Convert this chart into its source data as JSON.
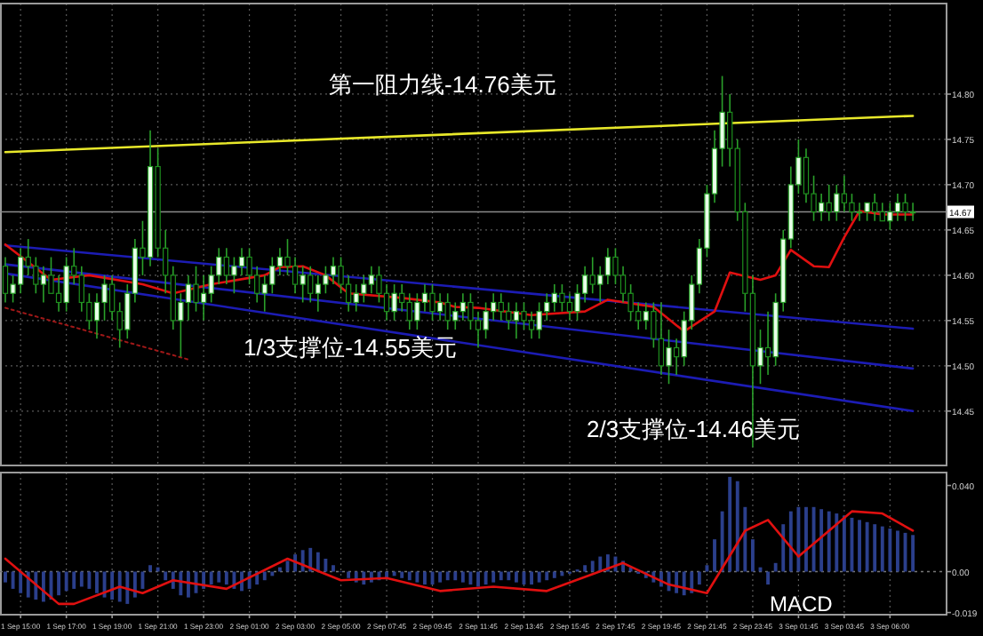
{
  "chart_data": [
    {
      "type": "candlestick",
      "tick_labels": "y",
      "grid": true,
      "categories": [
        null,
        null,
        null,
        null,
        null,
        null,
        null,
        null,
        null,
        null,
        null,
        null,
        null,
        null,
        null,
        null,
        null,
        null,
        null,
        null,
        null,
        null,
        null,
        null,
        null,
        null,
        null,
        null,
        null,
        null,
        null,
        null,
        null,
        null,
        null,
        null,
        null,
        null,
        null,
        null,
        null,
        null,
        null,
        null,
        null,
        null,
        null,
        null,
        null,
        null,
        null,
        null,
        null,
        null,
        null,
        null,
        null,
        null,
        null,
        null,
        null,
        null,
        null,
        null,
        null,
        null,
        null,
        null,
        null,
        null,
        null,
        null,
        null,
        null,
        null,
        null,
        null,
        null,
        null,
        null,
        null,
        null,
        null,
        null,
        null,
        null,
        null,
        null,
        null,
        null,
        null,
        null,
        null,
        null,
        null,
        null,
        null,
        null,
        null,
        null,
        null,
        null,
        null,
        null,
        null,
        null,
        null,
        null,
        null,
        null,
        null,
        null,
        null,
        null,
        null,
        null,
        null,
        null,
        null,
        null
      ],
      "ohlc": [
        [
          14.61,
          14.62,
          14.57,
          14.58
        ],
        [
          14.58,
          14.6,
          14.57,
          14.59
        ],
        [
          14.59,
          14.63,
          14.58,
          14.62
        ],
        [
          14.62,
          14.64,
          14.6,
          14.61
        ],
        [
          14.61,
          14.62,
          14.58,
          14.59
        ],
        [
          14.59,
          14.61,
          14.57,
          14.6
        ],
        [
          14.6,
          14.62,
          14.58,
          14.58
        ],
        [
          14.58,
          14.6,
          14.56,
          14.57
        ],
        [
          14.57,
          14.62,
          14.56,
          14.61
        ],
        [
          14.61,
          14.63,
          14.59,
          14.6
        ],
        [
          14.6,
          14.61,
          14.56,
          14.57
        ],
        [
          14.57,
          14.58,
          14.54,
          14.55
        ],
        [
          14.55,
          14.58,
          14.53,
          14.57
        ],
        [
          14.57,
          14.6,
          14.55,
          14.59
        ],
        [
          14.59,
          14.6,
          14.55,
          14.56
        ],
        [
          14.56,
          14.57,
          14.52,
          14.54
        ],
        [
          14.54,
          14.59,
          14.53,
          14.58
        ],
        [
          14.58,
          14.64,
          14.57,
          14.63
        ],
        [
          14.63,
          14.66,
          14.6,
          14.62
        ],
        [
          14.62,
          14.76,
          14.61,
          14.72
        ],
        [
          14.72,
          14.74,
          14.62,
          14.63
        ],
        [
          14.63,
          14.65,
          14.58,
          14.6
        ],
        [
          14.6,
          14.61,
          14.54,
          14.55
        ],
        [
          14.55,
          14.58,
          14.51,
          14.57
        ],
        [
          14.57,
          14.6,
          14.55,
          14.59
        ],
        [
          14.59,
          14.61,
          14.56,
          14.57
        ],
        [
          14.57,
          14.6,
          14.55,
          14.58
        ],
        [
          14.58,
          14.61,
          14.57,
          14.6
        ],
        [
          14.6,
          14.63,
          14.59,
          14.62
        ],
        [
          14.62,
          14.63,
          14.59,
          14.6
        ],
        [
          14.6,
          14.62,
          14.58,
          14.61
        ],
        [
          14.61,
          14.63,
          14.6,
          14.62
        ],
        [
          14.62,
          14.63,
          14.59,
          14.6
        ],
        [
          14.6,
          14.61,
          14.57,
          14.58
        ],
        [
          14.58,
          14.6,
          14.56,
          14.59
        ],
        [
          14.59,
          14.62,
          14.58,
          14.61
        ],
        [
          14.61,
          14.63,
          14.6,
          14.62
        ],
        [
          14.62,
          14.64,
          14.6,
          14.61
        ],
        [
          14.61,
          14.62,
          14.58,
          14.59
        ],
        [
          14.59,
          14.61,
          14.57,
          14.6
        ],
        [
          14.6,
          14.61,
          14.57,
          14.58
        ],
        [
          14.58,
          14.6,
          14.56,
          14.59
        ],
        [
          14.59,
          14.61,
          14.58,
          14.6
        ],
        [
          14.6,
          14.62,
          14.59,
          14.61
        ],
        [
          14.61,
          14.62,
          14.58,
          14.59
        ],
        [
          14.59,
          14.6,
          14.56,
          14.57
        ],
        [
          14.57,
          14.59,
          14.56,
          14.58
        ],
        [
          14.58,
          14.6,
          14.57,
          14.59
        ],
        [
          14.59,
          14.61,
          14.58,
          14.6
        ],
        [
          14.6,
          14.61,
          14.57,
          14.58
        ],
        [
          14.58,
          14.59,
          14.55,
          14.56
        ],
        [
          14.56,
          14.59,
          14.55,
          14.58
        ],
        [
          14.58,
          14.59,
          14.56,
          14.57
        ],
        [
          14.57,
          14.58,
          14.54,
          14.55
        ],
        [
          14.55,
          14.58,
          14.54,
          14.57
        ],
        [
          14.57,
          14.59,
          14.56,
          14.58
        ],
        [
          14.58,
          14.59,
          14.55,
          14.56
        ],
        [
          14.56,
          14.58,
          14.55,
          14.57
        ],
        [
          14.57,
          14.58,
          14.54,
          14.55
        ],
        [
          14.55,
          14.57,
          14.54,
          14.56
        ],
        [
          14.56,
          14.58,
          14.55,
          14.57
        ],
        [
          14.57,
          14.58,
          14.54,
          14.55
        ],
        [
          14.55,
          14.56,
          14.52,
          14.54
        ],
        [
          14.54,
          14.57,
          14.53,
          14.56
        ],
        [
          14.56,
          14.58,
          14.55,
          14.57
        ],
        [
          14.57,
          14.58,
          14.55,
          14.56
        ],
        [
          14.56,
          14.57,
          14.54,
          14.55
        ],
        [
          14.55,
          14.57,
          14.53,
          14.56
        ],
        [
          14.56,
          14.57,
          14.54,
          14.55
        ],
        [
          14.55,
          14.56,
          14.53,
          14.54
        ],
        [
          14.54,
          14.57,
          14.53,
          14.56
        ],
        [
          14.56,
          14.58,
          14.55,
          14.57
        ],
        [
          14.57,
          14.59,
          14.56,
          14.58
        ],
        [
          14.58,
          14.59,
          14.56,
          14.57
        ],
        [
          14.57,
          14.58,
          14.55,
          14.56
        ],
        [
          14.56,
          14.59,
          14.55,
          14.58
        ],
        [
          14.58,
          14.61,
          14.57,
          14.6
        ],
        [
          14.6,
          14.62,
          14.58,
          14.59
        ],
        [
          14.59,
          14.61,
          14.57,
          14.6
        ],
        [
          14.6,
          14.63,
          14.59,
          14.62
        ],
        [
          14.62,
          14.63,
          14.59,
          14.6
        ],
        [
          14.6,
          14.61,
          14.57,
          14.58
        ],
        [
          14.58,
          14.59,
          14.55,
          14.56
        ],
        [
          14.56,
          14.57,
          14.54,
          14.55
        ],
        [
          14.55,
          14.57,
          14.54,
          14.56
        ],
        [
          14.56,
          14.57,
          14.52,
          14.53
        ],
        [
          14.53,
          14.57,
          14.49,
          14.5
        ],
        [
          14.5,
          14.54,
          14.48,
          14.52
        ],
        [
          14.52,
          14.53,
          14.49,
          14.51
        ],
        [
          14.51,
          14.56,
          14.5,
          14.55
        ],
        [
          14.55,
          14.6,
          14.54,
          14.59
        ],
        [
          14.59,
          14.64,
          14.58,
          14.63
        ],
        [
          14.63,
          14.7,
          14.62,
          14.69
        ],
        [
          14.69,
          14.76,
          14.68,
          14.74
        ],
        [
          14.74,
          14.82,
          14.72,
          14.78
        ],
        [
          14.78,
          14.8,
          14.72,
          14.74
        ],
        [
          14.74,
          14.75,
          14.66,
          14.67
        ],
        [
          14.67,
          14.68,
          14.56,
          14.58
        ],
        [
          14.58,
          14.6,
          14.41,
          14.5
        ],
        [
          14.5,
          14.54,
          14.48,
          14.52
        ],
        [
          14.52,
          14.56,
          14.49,
          14.51
        ],
        [
          14.51,
          14.58,
          14.5,
          14.57
        ],
        [
          14.57,
          14.65,
          14.56,
          14.64
        ],
        [
          14.64,
          14.72,
          14.63,
          14.7
        ],
        [
          14.7,
          14.75,
          14.69,
          14.73
        ],
        [
          14.73,
          14.74,
          14.68,
          14.69
        ],
        [
          14.69,
          14.71,
          14.66,
          14.67
        ],
        [
          14.67,
          14.69,
          14.66,
          14.68
        ],
        [
          14.68,
          14.7,
          14.66,
          14.67
        ],
        [
          14.67,
          14.7,
          14.66,
          14.69
        ],
        [
          14.69,
          14.71,
          14.67,
          14.68
        ],
        [
          14.68,
          14.69,
          14.66,
          14.67
        ],
        [
          14.67,
          14.68,
          14.66,
          14.67
        ],
        [
          14.67,
          14.68,
          14.66,
          14.68
        ],
        [
          14.68,
          14.69,
          14.66,
          14.67
        ],
        [
          14.67,
          14.68,
          14.66,
          14.66
        ],
        [
          14.66,
          14.68,
          14.65,
          14.67
        ],
        [
          14.67,
          14.69,
          14.66,
          14.68
        ],
        [
          14.68,
          14.69,
          14.66,
          14.67
        ],
        [
          14.67,
          14.68,
          14.66,
          14.67
        ]
      ],
      "series": [
        {
          "type": "line",
          "color": "#e8e82a",
          "values": [
            14.736,
            null,
            null,
            null,
            null,
            null,
            null,
            null,
            null,
            null,
            null,
            null,
            null,
            null,
            null,
            null,
            null,
            null,
            null,
            null,
            null,
            null,
            null,
            null,
            null,
            null,
            null,
            null,
            null,
            null,
            null,
            null,
            null,
            null,
            null,
            null,
            null,
            null,
            null,
            null,
            null,
            null,
            null,
            null,
            null,
            null,
            null,
            null,
            null,
            null,
            null,
            null,
            null,
            null,
            null,
            null,
            null,
            null,
            null,
            null,
            null,
            null,
            null,
            null,
            null,
            null,
            null,
            null,
            null,
            null,
            null,
            null,
            null,
            null,
            null,
            null,
            null,
            null,
            null,
            null,
            null,
            null,
            null,
            null,
            null,
            null,
            null,
            null,
            null,
            null,
            null,
            null,
            null,
            null,
            null,
            null,
            null,
            null,
            null,
            null,
            null,
            null,
            null,
            null,
            null,
            null,
            null,
            null,
            null,
            null,
            null,
            null,
            null,
            null,
            null,
            null,
            null,
            null,
            null,
            14.776
          ]
        },
        {
          "type": "line",
          "color": "#1c1cb4",
          "values": [
            14.633,
            null,
            null,
            null,
            null,
            null,
            null,
            null,
            null,
            null,
            null,
            null,
            null,
            null,
            null,
            null,
            null,
            null,
            null,
            null,
            null,
            null,
            null,
            null,
            null,
            null,
            null,
            null,
            null,
            null,
            null,
            null,
            null,
            null,
            null,
            null,
            null,
            null,
            null,
            null,
            null,
            null,
            null,
            null,
            null,
            null,
            null,
            null,
            null,
            null,
            null,
            null,
            null,
            null,
            null,
            null,
            null,
            null,
            null,
            null,
            null,
            null,
            null,
            null,
            null,
            null,
            null,
            null,
            null,
            null,
            null,
            null,
            null,
            null,
            null,
            null,
            null,
            null,
            null,
            null,
            null,
            null,
            null,
            null,
            null,
            null,
            null,
            null,
            null,
            null,
            null,
            null,
            null,
            null,
            null,
            null,
            null,
            null,
            null,
            null,
            null,
            null,
            null,
            null,
            null,
            null,
            null,
            null,
            null,
            null,
            null,
            null,
            null,
            null,
            null,
            null,
            null,
            null,
            null,
            14.541
          ]
        },
        {
          "type": "line",
          "color": "#1c1cb4",
          "values": [
            14.612,
            null,
            null,
            null,
            null,
            null,
            null,
            null,
            null,
            null,
            null,
            null,
            null,
            null,
            null,
            null,
            null,
            null,
            null,
            null,
            null,
            null,
            null,
            null,
            null,
            null,
            null,
            null,
            null,
            null,
            null,
            null,
            null,
            null,
            null,
            null,
            null,
            null,
            null,
            null,
            null,
            null,
            null,
            null,
            null,
            null,
            null,
            null,
            null,
            null,
            null,
            null,
            null,
            null,
            null,
            null,
            null,
            null,
            null,
            null,
            null,
            null,
            null,
            null,
            null,
            null,
            null,
            null,
            null,
            null,
            null,
            null,
            null,
            null,
            null,
            null,
            null,
            null,
            null,
            null,
            null,
            null,
            null,
            null,
            null,
            null,
            null,
            null,
            null,
            null,
            null,
            null,
            null,
            null,
            null,
            null,
            null,
            null,
            null,
            null,
            null,
            null,
            null,
            null,
            null,
            null,
            null,
            null,
            null,
            null,
            null,
            null,
            null,
            null,
            null,
            null,
            null,
            null,
            null,
            14.497
          ]
        },
        {
          "type": "line",
          "color": "#1c1cb4",
          "values": [
            14.602,
            null,
            null,
            null,
            null,
            null,
            null,
            null,
            null,
            null,
            null,
            null,
            null,
            null,
            null,
            null,
            null,
            null,
            null,
            null,
            null,
            null,
            null,
            null,
            null,
            null,
            null,
            null,
            null,
            null,
            null,
            null,
            null,
            null,
            null,
            null,
            null,
            null,
            null,
            null,
            null,
            null,
            null,
            null,
            null,
            null,
            null,
            null,
            null,
            null,
            null,
            null,
            null,
            null,
            null,
            null,
            null,
            null,
            null,
            null,
            null,
            null,
            null,
            null,
            null,
            null,
            null,
            null,
            null,
            null,
            null,
            null,
            null,
            null,
            null,
            null,
            null,
            null,
            null,
            null,
            null,
            null,
            null,
            null,
            null,
            null,
            null,
            null,
            null,
            null,
            null,
            null,
            null,
            null,
            null,
            null,
            null,
            null,
            null,
            null,
            null,
            null,
            null,
            null,
            null,
            null,
            null,
            null,
            null,
            null,
            null,
            null,
            null,
            null,
            null,
            null,
            null,
            null,
            null,
            14.45
          ]
        },
        {
          "type": "line",
          "color": "#a01818",
          "line_style": "dotted",
          "values": [
            14.564,
            null,
            null,
            null,
            null,
            null,
            null,
            null,
            null,
            null,
            null,
            null,
            null,
            null,
            null,
            null,
            null,
            null,
            null,
            null,
            null,
            null,
            null,
            null,
            14.507,
            null,
            null,
            null,
            null,
            null,
            null,
            null,
            null,
            null,
            null,
            null,
            null,
            null,
            null,
            null,
            null,
            null,
            null,
            null,
            null,
            null,
            null,
            null,
            null,
            null,
            null,
            null,
            null,
            null,
            null,
            null,
            null,
            null,
            null,
            null,
            null,
            null,
            null,
            null,
            null,
            null,
            null,
            null,
            null,
            null,
            null,
            null,
            null,
            null,
            null,
            null,
            null,
            null,
            null,
            null,
            null,
            null,
            null,
            null,
            null,
            null,
            null,
            null,
            null,
            null,
            null,
            null,
            null,
            null,
            null,
            null,
            null,
            null,
            null,
            null,
            null,
            null,
            null,
            null,
            null,
            null,
            null,
            null,
            null,
            null,
            null,
            null,
            null,
            null,
            null,
            null,
            null,
            null,
            null,
            null
          ]
        },
        {
          "type": "line",
          "color": "#e01010",
          "values": [
            14.634,
            null,
            null,
            null,
            null,
            null,
            14.595,
            null,
            null,
            null,
            null,
            14.6,
            null,
            null,
            null,
            null,
            null,
            null,
            14.59,
            null,
            null,
            null,
            14.58,
            null,
            null,
            null,
            null,
            14.59,
            null,
            null,
            null,
            null,
            null,
            null,
            14.6,
            null,
            14.609,
            null,
            null,
            14.61,
            null,
            null,
            14.6,
            null,
            null,
            14.58,
            null,
            null,
            null,
            null,
            null,
            null,
            14.575,
            null,
            null,
            null,
            null,
            14.57,
            null,
            14.565,
            null,
            null,
            14.564,
            null,
            null,
            null,
            null,
            null,
            null,
            14.556,
            null,
            null,
            null,
            null,
            null,
            null,
            14.56,
            null,
            null,
            14.573,
            null,
            null,
            null,
            null,
            null,
            14.565,
            null,
            null,
            null,
            14.538,
            null,
            null,
            null,
            14.56,
            null,
            14.603,
            null,
            null,
            null,
            14.595,
            null,
            14.6,
            null,
            14.628,
            null,
            null,
            14.61,
            null,
            14.609,
            null,
            14.642,
            null,
            14.671,
            null,
            null,
            14.667,
            null,
            null,
            null,
            14.667
          ]
        }
      ],
      "ylim": [
        14.39,
        14.9
      ],
      "yticks": [
        {
          "value": 14.8,
          "label": "14.80"
        },
        {
          "value": 14.75,
          "label": "14.75"
        },
        {
          "value": 14.7,
          "label": "14.70"
        },
        {
          "value": 14.65,
          "label": "14.65"
        },
        {
          "value": 14.6,
          "label": "14.60"
        },
        {
          "value": 14.55,
          "label": "14.55"
        },
        {
          "value": 14.5,
          "label": "14.50"
        },
        {
          "value": 14.45,
          "label": "14.45"
        }
      ],
      "ref_lines": [
        {
          "axis": "y",
          "value": 14.67,
          "label": "14.67",
          "color": "#8a8a8a"
        }
      ],
      "annotations": [
        "第一阻力线-14.76美元",
        "1/3支撑位-14.55美元",
        "2/3支撑位-14.46美元"
      ]
    },
    {
      "type": "bar",
      "grid": "x",
      "categories": [
        null,
        null,
        "1 Sep 15:00",
        null,
        null,
        null,
        null,
        null,
        "1 Sep 17:00",
        null,
        null,
        null,
        null,
        null,
        "1 Sep 19:00",
        null,
        null,
        null,
        null,
        null,
        "1 Sep 21:00",
        null,
        null,
        null,
        null,
        null,
        "1 Sep 23:00",
        null,
        null,
        null,
        null,
        null,
        "2 Sep 01:00",
        null,
        null,
        null,
        null,
        null,
        "2 Sep 03:00",
        null,
        null,
        null,
        null,
        null,
        "2 Sep 05:00",
        null,
        null,
        null,
        null,
        null,
        "2 Sep 07:45",
        null,
        null,
        null,
        null,
        null,
        "2 Sep 09:45",
        null,
        null,
        null,
        null,
        null,
        "2 Sep 11:45",
        null,
        null,
        null,
        null,
        null,
        "2 Sep 13:45",
        null,
        null,
        null,
        null,
        null,
        "2 Sep 15:45",
        null,
        null,
        null,
        null,
        null,
        "2 Sep 17:45",
        null,
        null,
        null,
        null,
        null,
        "2 Sep 19:45",
        null,
        null,
        null,
        null,
        null,
        "2 Sep 21:45",
        null,
        null,
        null,
        null,
        null,
        "2 Sep 23:45",
        null,
        null,
        null,
        null,
        null,
        "3 Sep 01:45",
        null,
        null,
        null,
        null,
        null,
        "3 Sep 03:45",
        null,
        null,
        null,
        null,
        null,
        "3 Sep 06:00",
        null,
        null,
        null
      ],
      "series": [
        {
          "type": "bar",
          "color": "#2b3f8c",
          "values": [
            -0.005,
            -0.008,
            -0.01,
            -0.012,
            -0.013,
            -0.014,
            -0.013,
            -0.011,
            -0.009,
            -0.008,
            -0.007,
            -0.008,
            -0.01,
            -0.012,
            -0.013,
            -0.014,
            -0.015,
            -0.012,
            -0.008,
            0.003,
            0.002,
            -0.004,
            -0.008,
            -0.011,
            -0.012,
            -0.01,
            -0.008,
            -0.006,
            -0.005,
            -0.006,
            -0.008,
            -0.009,
            -0.008,
            -0.006,
            -0.004,
            -0.002,
            0.002,
            0.005,
            0.008,
            0.01,
            0.011,
            0.009,
            0.006,
            0.003,
            0.0,
            -0.003,
            -0.005,
            -0.006,
            -0.005,
            -0.004,
            -0.003,
            -0.002,
            -0.003,
            -0.004,
            -0.005,
            -0.006,
            -0.006,
            -0.005,
            -0.004,
            -0.004,
            -0.005,
            -0.006,
            -0.007,
            -0.006,
            -0.005,
            -0.004,
            -0.004,
            -0.005,
            -0.006,
            -0.006,
            -0.005,
            -0.004,
            -0.003,
            -0.002,
            -0.001,
            0.001,
            0.003,
            0.005,
            0.007,
            0.008,
            0.007,
            0.005,
            0.002,
            -0.001,
            -0.003,
            -0.005,
            -0.007,
            -0.009,
            -0.01,
            -0.011,
            -0.01,
            -0.006,
            0.003,
            0.015,
            0.028,
            0.044,
            0.042,
            0.03,
            0.015,
            0.002,
            -0.006,
            0.004,
            0.022,
            0.028,
            0.03,
            0.03,
            0.03,
            0.029,
            0.028,
            0.027,
            0.026,
            0.025,
            0.024,
            0.023,
            0.022,
            0.021,
            0.02,
            0.019,
            0.018,
            0.017
          ]
        },
        {
          "type": "line",
          "color": "#e01010",
          "values": [
            0.006,
            null,
            null,
            null,
            null,
            null,
            null,
            -0.015,
            null,
            -0.015,
            null,
            null,
            null,
            null,
            null,
            -0.007,
            null,
            null,
            -0.01,
            null,
            null,
            null,
            -0.004,
            null,
            null,
            null,
            null,
            null,
            null,
            -0.008,
            null,
            null,
            null,
            null,
            null,
            null,
            null,
            0.006,
            null,
            null,
            null,
            null,
            null,
            null,
            -0.004,
            null,
            null,
            null,
            null,
            null,
            -0.003,
            null,
            null,
            null,
            null,
            null,
            null,
            -0.009,
            null,
            null,
            null,
            null,
            null,
            null,
            -0.007,
            null,
            null,
            null,
            null,
            null,
            null,
            -0.009,
            null,
            null,
            null,
            null,
            null,
            null,
            null,
            null,
            null,
            0.004,
            null,
            null,
            null,
            null,
            null,
            -0.006,
            null,
            null,
            null,
            null,
            -0.01,
            null,
            null,
            null,
            null,
            0.019,
            null,
            null,
            0.024,
            null,
            null,
            null,
            0.007,
            null,
            null,
            null,
            null,
            null,
            null,
            0.028,
            null,
            null,
            null,
            0.027,
            null,
            null,
            null,
            0.019
          ]
        }
      ],
      "ylim": [
        -0.02,
        0.046
      ],
      "yticks": [
        {
          "value": 0.04,
          "label": "0.040"
        },
        {
          "value": 0,
          "label": "0.00"
        },
        {
          "value": -0.019,
          "label": "-0.019"
        }
      ],
      "ref_lines": [
        {
          "axis": "y",
          "value": 0,
          "color": "#777777",
          "line_style": "dotted"
        }
      ],
      "annotations": [
        "MACD"
      ]
    }
  ]
}
